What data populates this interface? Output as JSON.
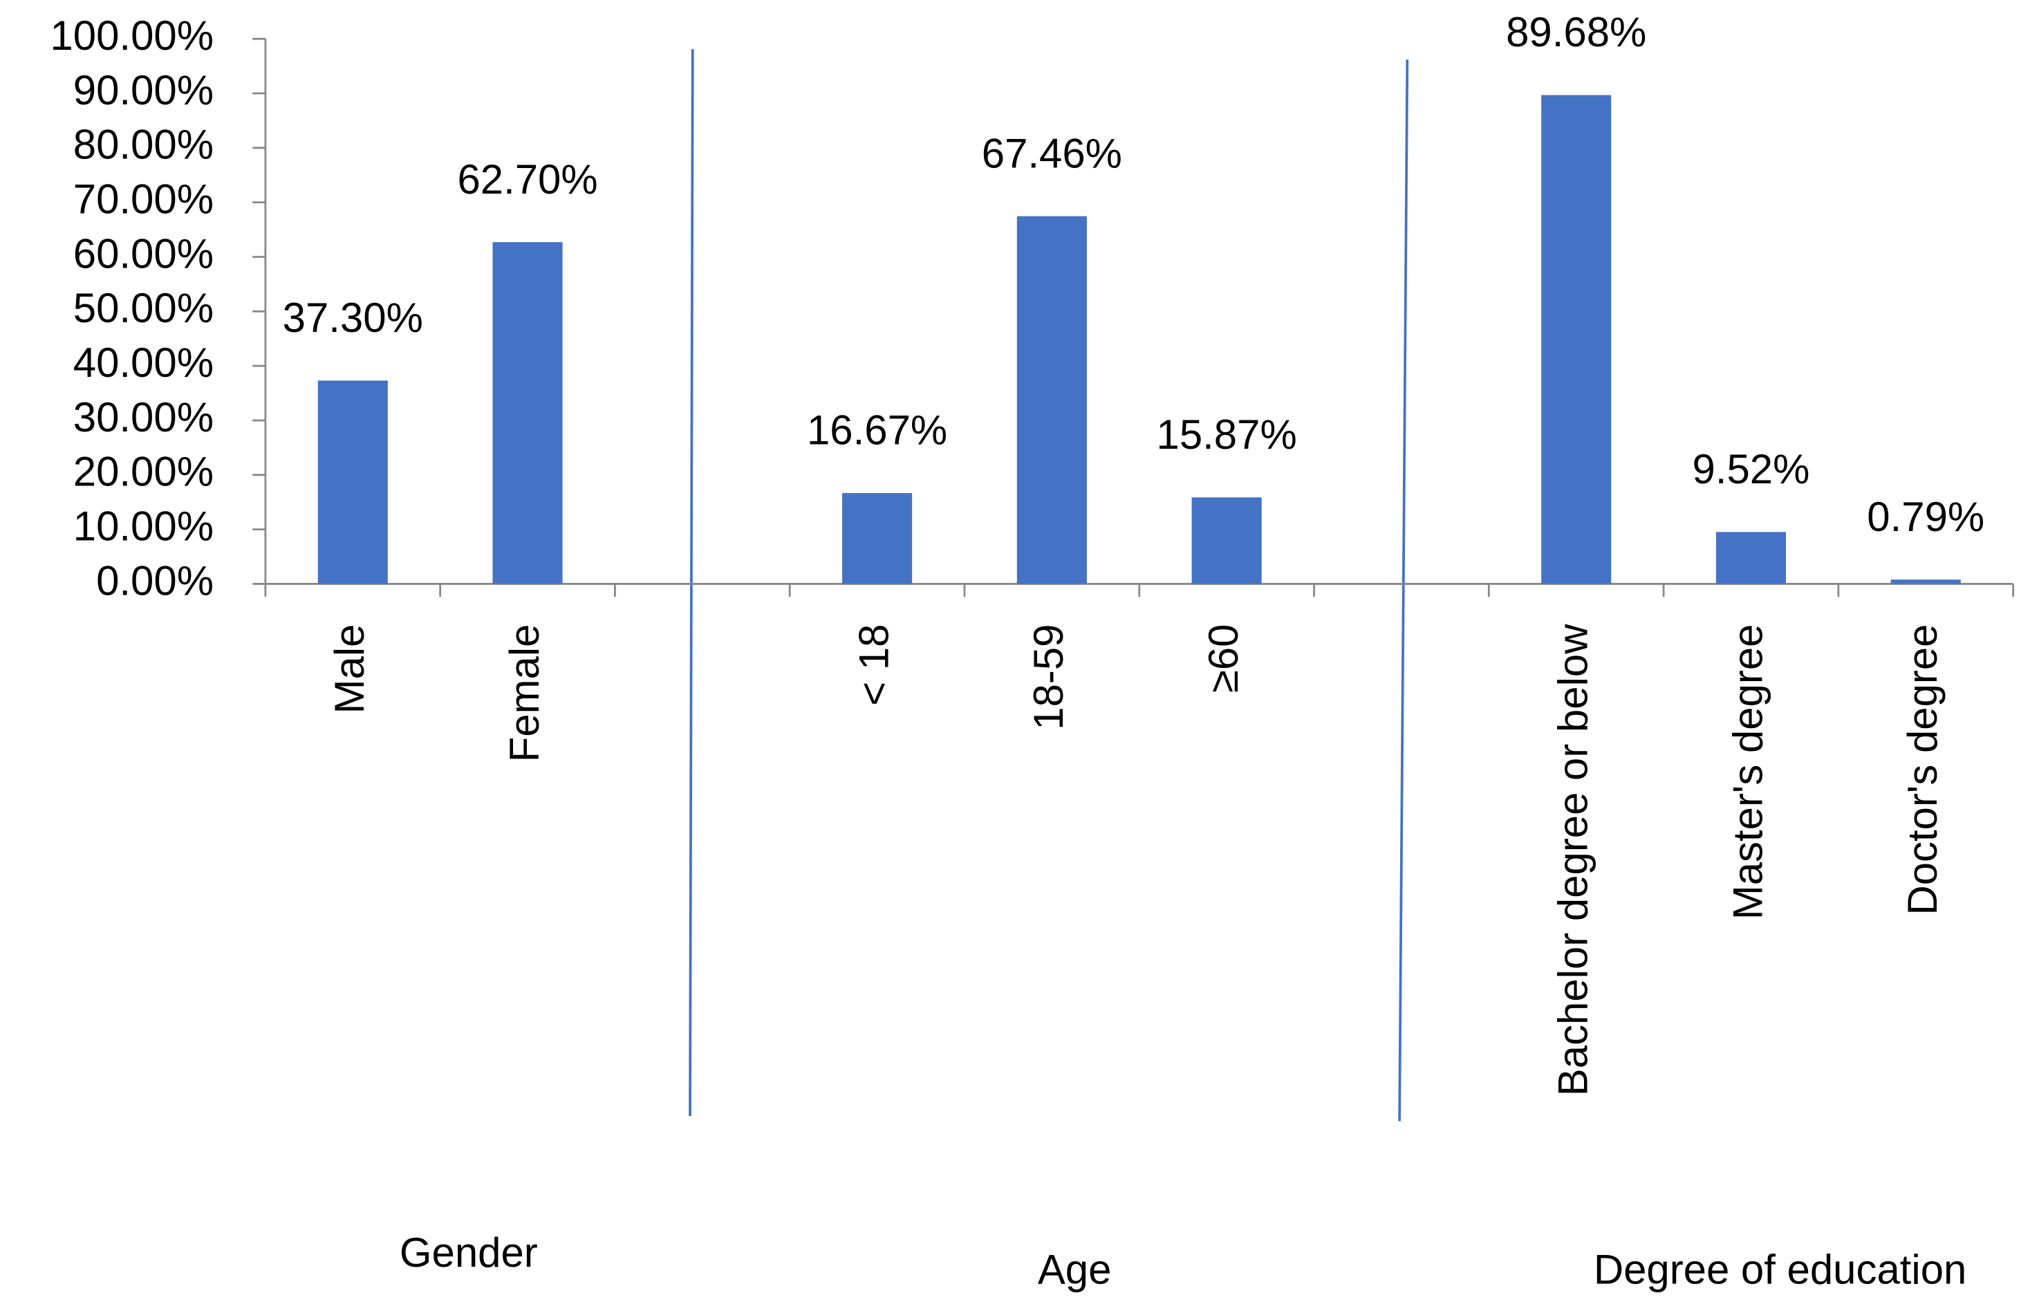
{
  "chart_data": {
    "type": "bar",
    "categories": [
      "Male",
      "Female",
      null,
      "< 18",
      "18-59",
      "≥60",
      null,
      "Bachelor degree or below",
      "Master's degree",
      "Doctor's degree"
    ],
    "values": [
      37.3,
      62.7,
      null,
      16.67,
      67.46,
      15.87,
      null,
      89.68,
      9.52,
      0.79
    ],
    "value_labels": [
      "37.30%",
      "62.70%",
      null,
      "16.67%",
      "67.46%",
      "15.87%",
      null,
      "89.68%",
      "9.52%",
      "0.79%"
    ],
    "color": "#4472c4",
    "ylim": [
      0,
      100
    ],
    "yticks": [
      {
        "value": 0,
        "label": "0.00%"
      },
      {
        "value": 10,
        "label": "10.00%"
      },
      {
        "value": 20,
        "label": "20.00%"
      },
      {
        "value": 30,
        "label": "30.00%"
      },
      {
        "value": 40,
        "label": "40.00%"
      },
      {
        "value": 50,
        "label": "50.00%"
      },
      {
        "value": 60,
        "label": "60.00%"
      },
      {
        "value": 70,
        "label": "70.00%"
      },
      {
        "value": 80,
        "label": "80.00%"
      },
      {
        "value": 90,
        "label": "90.00%"
      },
      {
        "value": 100,
        "label": "100.00%"
      }
    ],
    "grid": false,
    "annotations": [
      "Gender",
      "Age",
      "Degree of education"
    ]
  }
}
